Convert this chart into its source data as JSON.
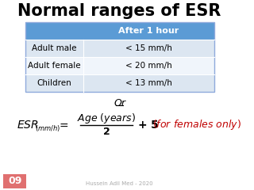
{
  "title": "Normal ranges of ESR",
  "table_header": "After 1 hour",
  "table_rows": [
    [
      "Adult male",
      "< 15 mm/h"
    ],
    [
      "Adult female",
      "< 20 mm/h"
    ],
    [
      "Children",
      "< 13 mm/h"
    ]
  ],
  "or_text": "Or",
  "footer_text": "Hussein Adil Med - 2020",
  "slide_number": "09",
  "bg_color": "#ffffff",
  "header_bg": "#5b9bd5",
  "header_text_color": "#ffffff",
  "row_bg_even": "#dce6f1",
  "row_bg_odd": "#f0f5fb",
  "footer_color": "#aaaaaa",
  "title_fontsize": 15,
  "or_fontsize": 9
}
